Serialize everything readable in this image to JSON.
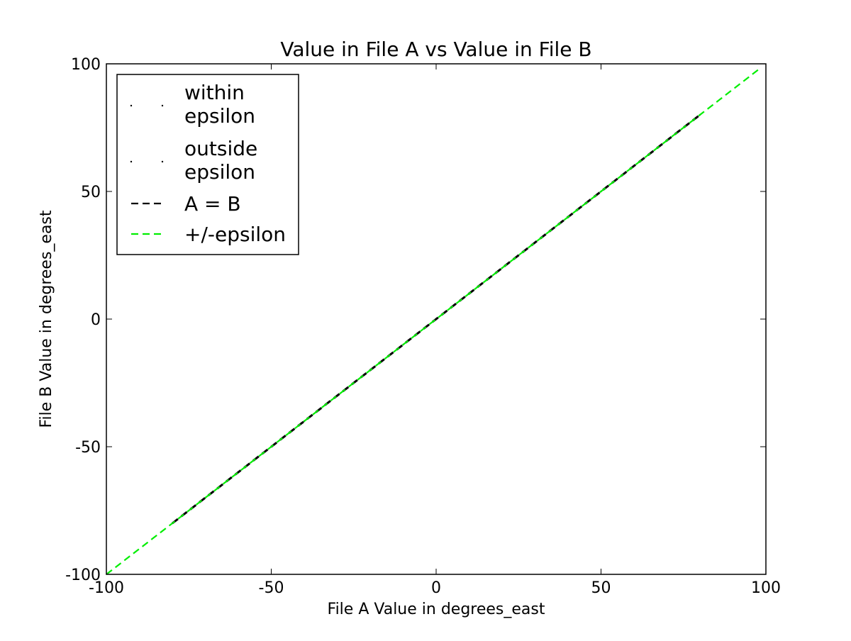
{
  "chart_data": {
    "type": "scatter",
    "title": "Value in File A vs Value in File B",
    "xlabel": "File A Value in degrees_east",
    "ylabel": "File B Value in degrees_east",
    "xlim": [
      -100,
      100
    ],
    "ylim": [
      -100,
      100
    ],
    "xticks": [
      -100,
      -50,
      0,
      50,
      100
    ],
    "yticks": [
      -100,
      -50,
      0,
      50,
      100
    ],
    "xtick_labels": [
      "-100",
      "-50",
      "0",
      "50",
      "100"
    ],
    "ytick_labels": [
      "-100",
      "-50",
      "0",
      "50",
      "100"
    ],
    "grid": false,
    "legend_position": "top-left",
    "series": [
      {
        "name": "within epsilon",
        "marker": "point",
        "color": "#000000",
        "x": [
          -80,
          -70,
          -60,
          -50,
          -40,
          -30,
          -20,
          -10,
          0,
          10,
          20,
          30,
          40,
          50,
          60,
          70,
          80
        ],
        "y": [
          -80,
          -70,
          -60,
          -50,
          -40,
          -30,
          -20,
          -10,
          0,
          10,
          20,
          30,
          40,
          50,
          60,
          70,
          80
        ]
      },
      {
        "name": "outside epsilon",
        "marker": "point",
        "color": "#000000",
        "x": [],
        "y": []
      },
      {
        "name": "A = B",
        "line_style": "dashed",
        "color": "#000000",
        "x": [
          -80,
          80
        ],
        "y": [
          -80,
          80
        ]
      },
      {
        "name": "+/-epsilon",
        "line_style": "dashed",
        "color": "#00ee00",
        "x": [
          -100,
          98
        ],
        "y": [
          -100,
          98
        ]
      }
    ]
  }
}
